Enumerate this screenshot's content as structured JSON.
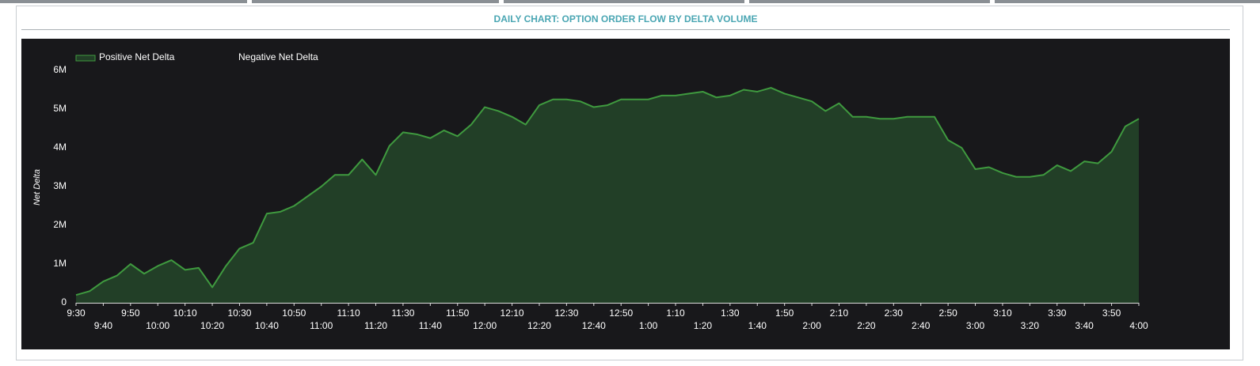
{
  "chart_data": {
    "type": "area",
    "title": "DAILY CHART: OPTION ORDER FLOW BY DELTA VOLUME",
    "ylabel": "Net Delta",
    "x": [
      "9:30",
      "9:35",
      "9:40",
      "9:45",
      "9:50",
      "9:55",
      "10:00",
      "10:05",
      "10:10",
      "10:15",
      "10:20",
      "10:25",
      "10:30",
      "10:35",
      "10:40",
      "10:45",
      "10:50",
      "10:55",
      "11:00",
      "11:05",
      "11:10",
      "11:15",
      "11:20",
      "11:25",
      "11:30",
      "11:35",
      "11:40",
      "11:45",
      "11:50",
      "11:55",
      "12:00",
      "12:05",
      "12:10",
      "12:15",
      "12:20",
      "12:25",
      "12:30",
      "12:35",
      "12:40",
      "12:45",
      "12:50",
      "12:55",
      "1:00",
      "1:05",
      "1:10",
      "1:15",
      "1:20",
      "1:25",
      "1:30",
      "1:35",
      "1:40",
      "1:45",
      "1:50",
      "1:55",
      "2:00",
      "2:05",
      "2:10",
      "2:15",
      "2:20",
      "2:25",
      "2:30",
      "2:35",
      "2:40",
      "2:45",
      "2:50",
      "2:55",
      "3:00",
      "3:05",
      "3:10",
      "3:15",
      "3:20",
      "3:25",
      "3:30",
      "3:35",
      "3:40",
      "3:45",
      "3:50",
      "3:55",
      "4:00"
    ],
    "xticks": [
      "9:30",
      "9:40",
      "9:50",
      "10:00",
      "10:10",
      "10:20",
      "10:30",
      "10:40",
      "10:50",
      "11:00",
      "11:10",
      "11:20",
      "11:30",
      "11:40",
      "11:50",
      "12:00",
      "12:10",
      "12:20",
      "12:30",
      "12:40",
      "12:50",
      "1:00",
      "1:10",
      "1:20",
      "1:30",
      "1:40",
      "1:50",
      "2:00",
      "2:10",
      "2:20",
      "2:30",
      "2:40",
      "2:50",
      "3:00",
      "3:10",
      "3:20",
      "3:30",
      "3:40",
      "3:50",
      "4:00"
    ],
    "series": [
      {
        "name": "Positive Net Delta",
        "color": "#3f9a3f",
        "fill": "#223f27",
        "values": [
          200000,
          300000,
          550000,
          700000,
          1000000,
          750000,
          950000,
          1100000,
          850000,
          900000,
          400000,
          950000,
          1400000,
          1550000,
          2300000,
          2350000,
          2500000,
          2750000,
          3000000,
          3300000,
          3300000,
          3700000,
          3300000,
          4050000,
          4400000,
          4350000,
          4250000,
          4450000,
          4300000,
          4600000,
          5050000,
          4950000,
          4800000,
          4600000,
          5100000,
          5250000,
          5250000,
          5200000,
          5050000,
          5100000,
          5250000,
          5250000,
          5250000,
          5350000,
          5350000,
          5400000,
          5450000,
          5300000,
          5350000,
          5500000,
          5450000,
          5550000,
          5400000,
          5300000,
          5200000,
          4950000,
          5150000,
          4800000,
          4800000,
          4750000,
          4750000,
          4800000,
          4800000,
          4800000,
          4200000,
          4000000,
          3450000,
          3500000,
          3350000,
          3250000,
          3250000,
          3300000,
          3550000,
          3400000,
          3650000,
          3600000,
          3900000,
          4550000,
          4750000
        ]
      },
      {
        "name": "Negative Net Delta",
        "color": "#18181b",
        "fill": "#18181b",
        "values": [
          null,
          null,
          null,
          null,
          null,
          null,
          null,
          null,
          null,
          null,
          null,
          null,
          null,
          null,
          null,
          null,
          null,
          null,
          null,
          null,
          null,
          null,
          null,
          null,
          null,
          null,
          null,
          null,
          null,
          null,
          null,
          null,
          null,
          null,
          null,
          null,
          null,
          null,
          null,
          null,
          null,
          null,
          null,
          null,
          null,
          null,
          null,
          null,
          null,
          null,
          null,
          null,
          null,
          null,
          null,
          null,
          null,
          null,
          null,
          null,
          null,
          null,
          null,
          null,
          null,
          null,
          null,
          null,
          null,
          null,
          null,
          null,
          null,
          null,
          null,
          null,
          null,
          null,
          null
        ]
      }
    ],
    "ylim": [
      0,
      6000000
    ],
    "yticks": [
      0,
      {
        "value": 1000000,
        "label": "1M"
      },
      {
        "value": 2000000,
        "label": "2M"
      },
      {
        "value": 3000000,
        "label": "3M"
      },
      {
        "value": 4000000,
        "label": "4M"
      },
      {
        "value": 5000000,
        "label": "5M"
      },
      {
        "value": 6000000,
        "label": "6M"
      }
    ],
    "legend": "top-left"
  }
}
